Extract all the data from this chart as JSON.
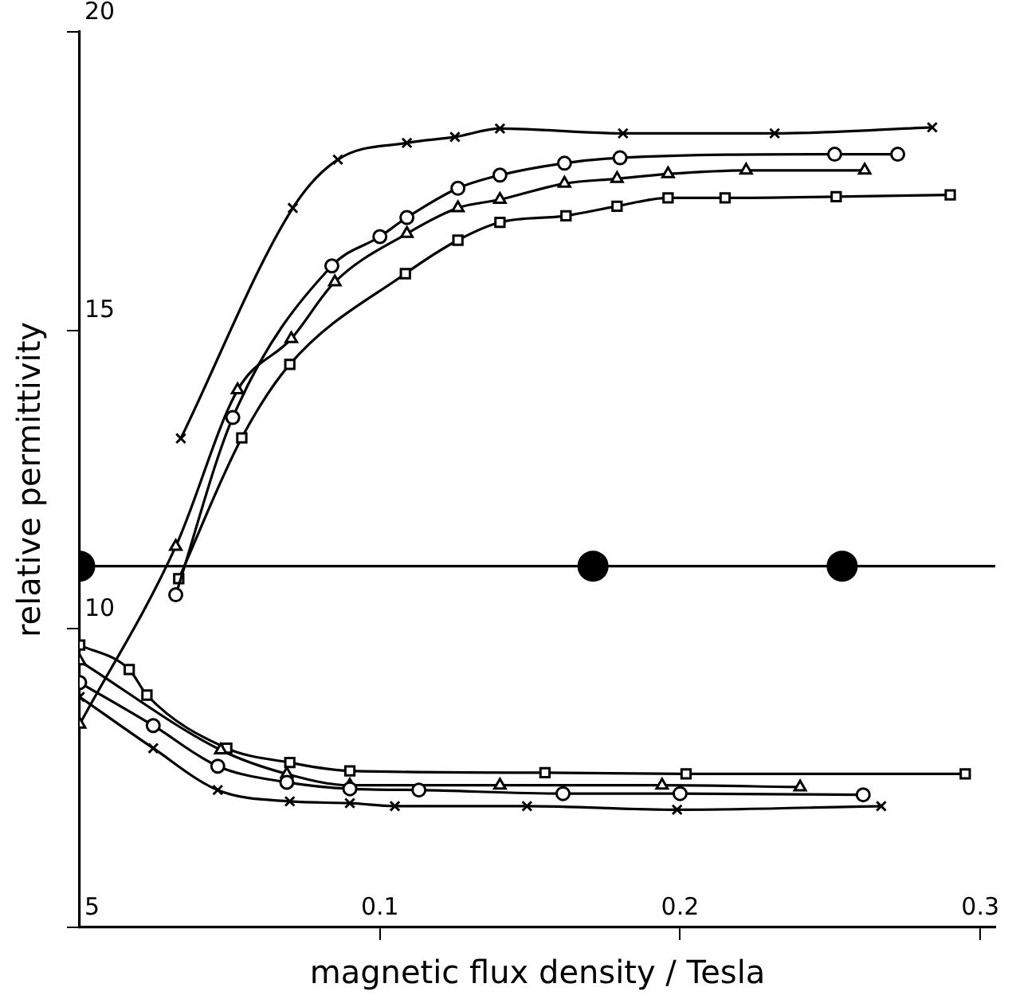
{
  "chart_data": {
    "type": "line",
    "xlabel": "magnetic flux density / Tesla",
    "ylabel": "relative permittivity",
    "xlim": [
      0,
      0.305
    ],
    "ylim": [
      5,
      20
    ],
    "xticks": [
      0.1,
      0.2,
      0.3
    ],
    "yticks": [
      5,
      10,
      15,
      20
    ],
    "grid": false,
    "legend": false,
    "ref_lines": [
      {
        "axis": "y",
        "value": 11.05,
        "color": "#000000"
      }
    ],
    "series": [
      {
        "marker": "cross",
        "color": "#000000",
        "x": [
          0.0337,
          0.071,
          0.086,
          0.109,
          0.125,
          0.14,
          0.181,
          0.2315,
          0.284
        ],
        "values": [
          13.19,
          17.05,
          17.86,
          18.14,
          18.24,
          18.38,
          18.3,
          18.3,
          18.4
        ]
      },
      {
        "marker": "circle",
        "color": "#000000",
        "x": [
          0.032,
          0.051,
          0.084,
          0.1,
          0.109,
          0.126,
          0.14,
          0.1615,
          0.18,
          0.2515,
          0.2725
        ],
        "values": [
          10.57,
          13.54,
          16.08,
          16.57,
          16.89,
          17.38,
          17.6,
          17.8,
          17.89,
          17.95,
          17.95
        ]
      },
      {
        "marker": "triangle",
        "color": "#000000",
        "x": [
          0,
          0.032,
          0.0526,
          0.0705,
          0.085,
          0.109,
          0.126,
          0.14,
          0.1615,
          0.179,
          0.196,
          0.222,
          0.2615
        ],
        "values": [
          8.4,
          11.38,
          14.0,
          14.86,
          15.81,
          16.62,
          17.05,
          17.19,
          17.46,
          17.54,
          17.62,
          17.68,
          17.68
        ]
      },
      {
        "marker": "square",
        "color": "#000000",
        "x": [
          0.033,
          0.054,
          0.07,
          0.1085,
          0.126,
          0.14,
          0.162,
          0.179,
          0.196,
          0.215,
          0.252,
          0.29
        ],
        "values": [
          10.84,
          13.2,
          14.43,
          15.95,
          16.51,
          16.81,
          16.92,
          17.08,
          17.22,
          17.22,
          17.24,
          17.27
        ]
      },
      {
        "marker": "cross",
        "color": "#000000",
        "x": [
          0,
          0.0245,
          0.046,
          0.07,
          0.09,
          0.105,
          0.149,
          0.199,
          0.267
        ],
        "values": [
          8.86,
          8.0,
          7.3,
          7.11,
          7.08,
          7.03,
          7.03,
          6.97,
          7.03
        ]
      },
      {
        "marker": "circle",
        "color": "#000000",
        "x": [
          0,
          0.0245,
          0.046,
          0.069,
          0.09,
          0.113,
          0.161,
          0.2,
          0.261
        ],
        "values": [
          9.1,
          8.38,
          7.7,
          7.43,
          7.32,
          7.3,
          7.24,
          7.24,
          7.22
        ]
      },
      {
        "marker": "triangle",
        "color": "#000000",
        "x": [
          0,
          0.047,
          0.069,
          0.09,
          0.14,
          0.194,
          0.24
        ],
        "values": [
          9.46,
          7.97,
          7.57,
          7.38,
          7.38,
          7.38,
          7.35
        ]
      },
      {
        "marker": "square",
        "color": "#000000",
        "x": [
          0,
          0.0165,
          0.0224,
          0.049,
          0.07,
          0.09,
          0.155,
          0.202,
          0.295
        ],
        "values": [
          9.73,
          9.32,
          8.89,
          8.0,
          7.76,
          7.62,
          7.59,
          7.57,
          7.57
        ]
      },
      {
        "type": "scatter",
        "marker": "circle",
        "color": "#000000",
        "x": [
          0,
          0.171,
          0.254
        ],
        "values": [
          11.05,
          11.05,
          11.05
        ]
      }
    ]
  }
}
